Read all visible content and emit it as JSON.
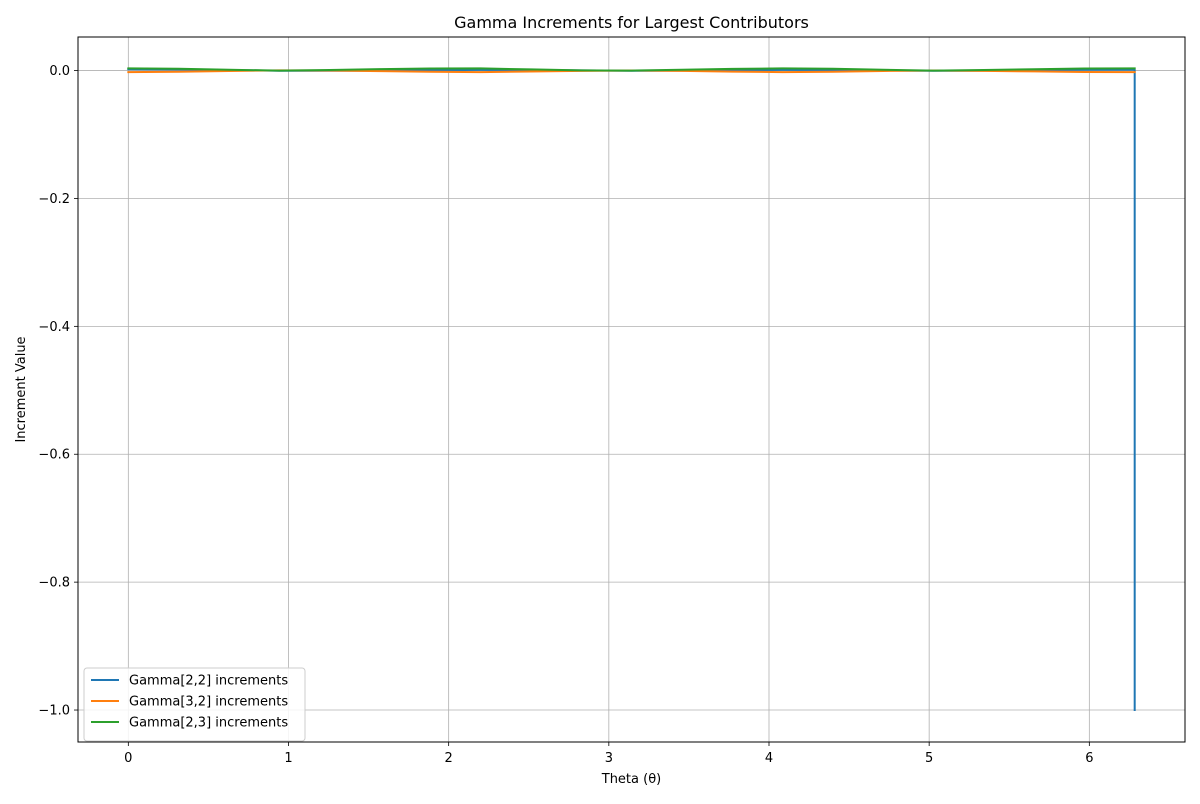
{
  "chart_data": {
    "type": "line",
    "title": "Gamma Increments for Largest Contributors",
    "xlabel": "Theta (θ)",
    "ylabel": "Increment Value",
    "xlim": [
      -0.3142,
      6.5973
    ],
    "ylim": [
      -1.05,
      0.0525
    ],
    "xticks": [
      0,
      1,
      2,
      3,
      4,
      5,
      6
    ],
    "xtick_labels": [
      "0",
      "1",
      "2",
      "3",
      "4",
      "5",
      "6"
    ],
    "yticks": [
      0.0,
      -0.2,
      -0.4,
      -0.6,
      -0.8,
      -1.0
    ],
    "ytick_labels": [
      "0.0",
      "−0.2",
      "−0.4",
      "−0.6",
      "−0.8",
      "−1.0"
    ],
    "grid": true,
    "legend_position": "lower-left",
    "series": [
      {
        "name": "Gamma[2,2] increments",
        "color": "#1f77b4",
        "x": [
          0.0,
          0.3142,
          0.6283,
          0.9425,
          1.2566,
          1.5708,
          1.885,
          2.1991,
          2.5133,
          2.8274,
          3.1416,
          3.4558,
          3.7699,
          4.0841,
          4.3982,
          4.7124,
          5.0265,
          5.3407,
          5.6549,
          5.969,
          6.2832,
          6.2832
        ],
        "values": [
          0.002,
          0.0016,
          0.0007,
          -0.0002,
          -0.0003,
          0.0,
          0.0006,
          0.0011,
          0.0009,
          0.0003,
          -0.0002,
          0.0,
          0.0005,
          0.001,
          0.0008,
          0.0002,
          -0.0003,
          0.0,
          0.0006,
          0.0012,
          0.0015,
          -1.0
        ]
      },
      {
        "name": "Gamma[3,2] increments",
        "color": "#ff7f0e",
        "x": [
          0.0,
          0.3142,
          0.6283,
          0.9425,
          1.2566,
          1.5708,
          1.885,
          2.1991,
          2.5133,
          2.8274,
          3.1416,
          3.4558,
          3.7699,
          4.0841,
          4.3982,
          4.7124,
          5.0265,
          5.3407,
          5.6549,
          5.969,
          6.2832
        ],
        "values": [
          -0.0025,
          -0.0018,
          -0.0006,
          0.0003,
          0.0002,
          -0.0008,
          -0.0019,
          -0.0024,
          -0.0015,
          -0.0004,
          0.0002,
          -0.0005,
          -0.0016,
          -0.0024,
          -0.0018,
          -0.0006,
          0.0002,
          -0.0004,
          -0.0013,
          -0.0022,
          -0.0025
        ]
      },
      {
        "name": "Gamma[2,3] increments",
        "color": "#2ca02c",
        "x": [
          0.0,
          0.3142,
          0.6283,
          0.9425,
          1.2566,
          1.5708,
          1.885,
          2.1991,
          2.5133,
          2.8274,
          3.1416,
          3.4558,
          3.7699,
          4.0841,
          4.3982,
          4.7124,
          5.0265,
          5.3407,
          5.6549,
          5.969,
          6.2832
        ],
        "values": [
          0.0035,
          0.0028,
          0.0012,
          0.0,
          0.0008,
          0.0022,
          0.0032,
          0.0034,
          0.0018,
          0.0004,
          0.0,
          0.0012,
          0.0026,
          0.0034,
          0.0028,
          0.0012,
          0.0,
          0.0009,
          0.0021,
          0.0032,
          0.0035
        ]
      }
    ]
  }
}
